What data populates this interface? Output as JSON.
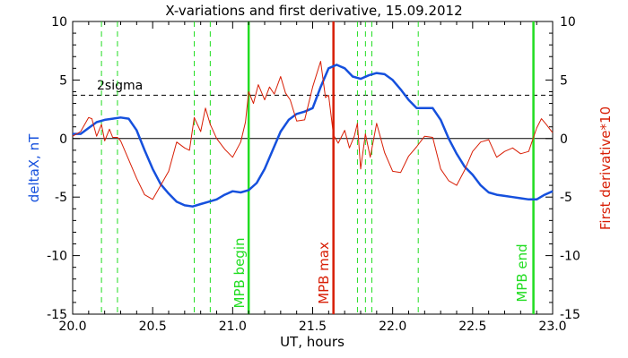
{
  "chart_data": {
    "type": "line",
    "title": "X-variations and first derivative, 15.09.2012",
    "xlabel": "UT, hours",
    "ylabel_left": "deltaX, nT",
    "ylabel_right": "First derivative*10",
    "xlim": [
      20.0,
      23.0
    ],
    "ylim": [
      -15,
      10
    ],
    "x_ticks": [
      "20.0",
      "20.5",
      "21.0",
      "21.5",
      "22.0",
      "22.5",
      "23.0"
    ],
    "y_ticks": [
      "10",
      "5",
      "0",
      "-5",
      "-10",
      "-15"
    ],
    "y_tick_values": [
      10,
      5,
      0,
      -5,
      -10,
      -15
    ],
    "grid": false,
    "colors": {
      "deltaX": "#1550dd",
      "derivative": "#d81e05",
      "mpb": "#22dd22",
      "max": "#d81e05"
    },
    "sigma": {
      "label": "2sigma",
      "value": 3.7
    },
    "zero_line": 0,
    "vertical_markers": [
      {
        "x": 21.1,
        "label": "MPB begin",
        "color": "#22dd22"
      },
      {
        "x": 21.63,
        "label": "MPB max",
        "color": "#d81e05"
      },
      {
        "x": 22.88,
        "label": "MPB end",
        "color": "#22dd22"
      }
    ],
    "dashed_verticals": [
      20.18,
      20.28,
      20.76,
      20.86,
      21.78,
      21.83,
      21.87,
      22.16
    ],
    "series": [
      {
        "name": "deltaX",
        "color": "#1550dd",
        "x": [
          20.0,
          20.05,
          20.1,
          20.15,
          20.2,
          20.25,
          20.3,
          20.35,
          20.4,
          20.45,
          20.5,
          20.55,
          20.6,
          20.65,
          20.7,
          20.75,
          20.8,
          20.85,
          20.9,
          20.95,
          21.0,
          21.05,
          21.1,
          21.15,
          21.2,
          21.25,
          21.3,
          21.35,
          21.4,
          21.45,
          21.5,
          21.55,
          21.6,
          21.65,
          21.7,
          21.75,
          21.8,
          21.85,
          21.9,
          21.95,
          22.0,
          22.05,
          22.1,
          22.15,
          22.2,
          22.25,
          22.3,
          22.35,
          22.4,
          22.45,
          22.5,
          22.55,
          22.6,
          22.65,
          22.7,
          22.75,
          22.8,
          22.85,
          22.9,
          22.95,
          23.0
        ],
        "values": [
          0.4,
          0.4,
          0.9,
          1.4,
          1.6,
          1.7,
          1.8,
          1.7,
          0.7,
          -1.0,
          -2.6,
          -3.9,
          -4.7,
          -5.4,
          -5.7,
          -5.8,
          -5.6,
          -5.4,
          -5.2,
          -4.8,
          -4.5,
          -4.6,
          -4.4,
          -3.8,
          -2.6,
          -1.0,
          0.6,
          1.6,
          2.1,
          2.3,
          2.6,
          4.4,
          6.0,
          6.3,
          6.0,
          5.3,
          5.1,
          5.4,
          5.6,
          5.5,
          5.0,
          4.2,
          3.3,
          2.6,
          2.6,
          2.6,
          1.6,
          0.0,
          -1.3,
          -2.4,
          -3.1,
          -4.0,
          -4.6,
          -4.8,
          -4.9,
          -5.0,
          -5.1,
          -5.2,
          -5.2,
          -4.8,
          -4.5
        ]
      },
      {
        "name": "First derivative*10",
        "color": "#d81e05",
        "x": [
          20.0,
          20.05,
          20.1,
          20.12,
          20.15,
          20.18,
          20.2,
          20.23,
          20.25,
          20.28,
          20.3,
          20.35,
          20.4,
          20.45,
          20.5,
          20.55,
          20.6,
          20.65,
          20.7,
          20.73,
          20.76,
          20.8,
          20.83,
          20.86,
          20.9,
          20.95,
          21.0,
          21.05,
          21.08,
          21.1,
          21.13,
          21.16,
          21.2,
          21.23,
          21.26,
          21.3,
          21.33,
          21.36,
          21.4,
          21.45,
          21.5,
          21.55,
          21.58,
          21.6,
          21.63,
          21.66,
          21.7,
          21.73,
          21.76,
          21.78,
          21.8,
          21.83,
          21.86,
          21.9,
          21.95,
          22.0,
          22.05,
          22.1,
          22.15,
          22.2,
          22.25,
          22.3,
          22.35,
          22.4,
          22.45,
          22.5,
          22.55,
          22.6,
          22.65,
          22.7,
          22.75,
          22.8,
          22.85,
          22.9,
          22.93,
          22.96,
          23.0
        ],
        "values": [
          0.2,
          0.6,
          1.8,
          1.7,
          0.2,
          1.2,
          -0.2,
          0.8,
          0.1,
          0.1,
          -0.2,
          -1.8,
          -3.4,
          -4.8,
          -5.2,
          -4.0,
          -2.8,
          -0.3,
          -0.8,
          -1.0,
          1.8,
          0.6,
          2.6,
          1.2,
          0.0,
          -0.9,
          -1.6,
          -0.3,
          1.4,
          4.0,
          3.0,
          4.6,
          3.3,
          4.4,
          3.8,
          5.3,
          3.9,
          3.3,
          1.5,
          1.6,
          4.4,
          6.6,
          3.5,
          3.7,
          0.3,
          -0.4,
          0.7,
          -0.8,
          0.2,
          1.3,
          -2.6,
          0.4,
          -1.6,
          1.3,
          -1.2,
          -2.8,
          -2.9,
          -1.5,
          -0.7,
          0.2,
          0.1,
          -2.6,
          -3.6,
          -4.0,
          -2.7,
          -1.1,
          -0.3,
          -0.1,
          -1.6,
          -1.1,
          -0.8,
          -1.3,
          -1.1,
          0.9,
          1.7,
          1.2,
          0.5
        ]
      }
    ]
  }
}
